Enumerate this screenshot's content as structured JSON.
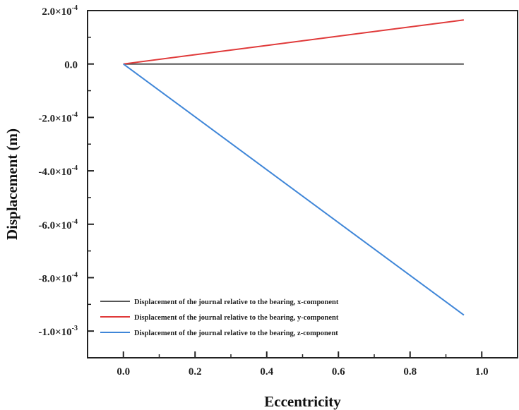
{
  "chart_data": {
    "type": "line",
    "title": "",
    "xlabel": "Eccentricity",
    "ylabel": "Displacement (m)",
    "xlim": [
      -0.1,
      1.1
    ],
    "ylim": [
      -0.0011,
      0.0002
    ],
    "xticks": [
      0.0,
      0.2,
      0.4,
      0.6,
      0.8,
      1.0
    ],
    "xtick_labels": [
      "0.0",
      "0.2",
      "0.4",
      "0.6",
      "0.8",
      "1.0"
    ],
    "yticks": [
      0.0002,
      0,
      -0.0002,
      -0.0004,
      -0.0006,
      -0.0008,
      -0.001
    ],
    "ytick_labels": [
      [
        "2.0×10",
        "-4"
      ],
      [
        "0.0",
        ""
      ],
      [
        "-2.0×10",
        "-4"
      ],
      [
        "-4.0×10",
        "-4"
      ],
      [
        "-6.0×10",
        "-4"
      ],
      [
        "-8.0×10",
        "-4"
      ],
      [
        "-1.0×10",
        "-3"
      ]
    ],
    "legend_position": "bottom-left",
    "series": [
      {
        "name": "Displacement of the journal relative to the bearing, x-component",
        "color": "#555555",
        "x": [
          0,
          0.95
        ],
        "y": [
          0,
          0
        ]
      },
      {
        "name": "Displacement of the journal relative to the bearing, y-component",
        "color": "#e03a3a",
        "x": [
          0,
          0.95
        ],
        "y": [
          0,
          0.000165
        ]
      },
      {
        "name": "Displacement of the journal relative to the bearing, z-component",
        "color": "#3f86d8",
        "x": [
          0,
          0.95
        ],
        "y": [
          0,
          -0.00094
        ]
      }
    ]
  }
}
